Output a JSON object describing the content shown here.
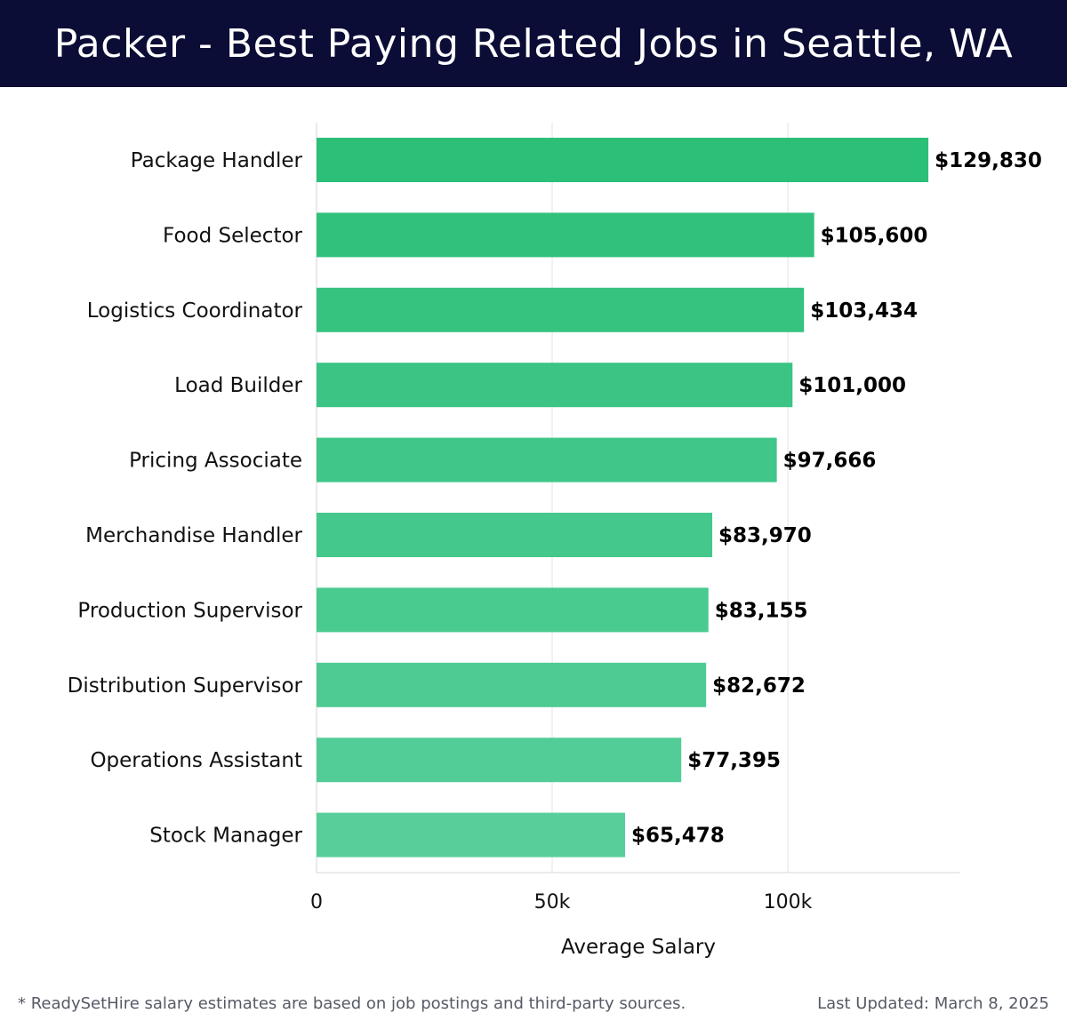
{
  "header": {
    "title": "Packer - Best Paying Related Jobs in Seattle, WA"
  },
  "footer": {
    "note": "* ReadySetHire salary estimates are based on job postings and third-party sources.",
    "updated": "Last Updated: March 8, 2025"
  },
  "colors": {
    "header_bg": "#0b0d36",
    "bar_top": "#2cbf78",
    "bar_bottom": "#58cf9b",
    "grid": "#e3e3e3",
    "label": "#111111"
  },
  "chart_data": {
    "type": "bar",
    "orientation": "horizontal",
    "title": "Packer - Best Paying Related Jobs in Seattle, WA",
    "xlabel": "Average Salary",
    "ylabel": "",
    "xlim": [
      0,
      137000
    ],
    "xticks": [
      0,
      50000,
      100000
    ],
    "xtick_labels": [
      "0",
      "50k",
      "100k"
    ],
    "grid": true,
    "categories": [
      "Package Handler",
      "Food Selector",
      "Logistics Coordinator",
      "Load Builder",
      "Pricing Associate",
      "Merchandise Handler",
      "Production Supervisor",
      "Distribution Supervisor",
      "Operations Assistant",
      "Stock Manager"
    ],
    "values": [
      129830,
      105600,
      103434,
      101000,
      97666,
      83970,
      83155,
      82672,
      77395,
      65478
    ],
    "value_labels": [
      "$129,830",
      "$105,600",
      "$103,434",
      "$101,000",
      "$97,666",
      "$83,970",
      "$83,155",
      "$82,672",
      "$77,395",
      "$65,478"
    ]
  }
}
